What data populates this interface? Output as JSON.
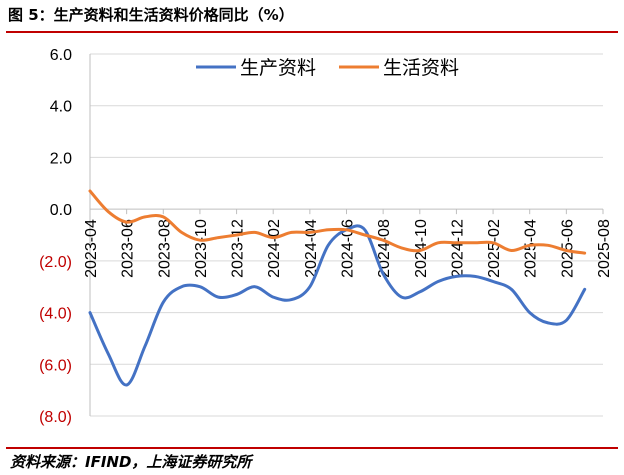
{
  "title": "图 5：生产资料和生活资料价格同比（%）",
  "source": "资料来源：IFIND，上海证券研究所",
  "colors": {
    "rule": "#c00000",
    "production": "#4472c4",
    "living": "#ed7d31",
    "grid": "#d9d9d9",
    "axis": "#bfbfbf"
  },
  "chart_data": {
    "type": "line",
    "ylim": [
      -8,
      6
    ],
    "yticks": [
      {
        "value": 6,
        "label": "6.0"
      },
      {
        "value": 4,
        "label": "4.0"
      },
      {
        "value": 2,
        "label": "2.0"
      },
      {
        "value": 0,
        "label": "0.0"
      },
      {
        "value": -2,
        "label": "(2.0)"
      },
      {
        "value": -4,
        "label": "(4.0)"
      },
      {
        "value": -6,
        "label": "(6.0)"
      },
      {
        "value": -8,
        "label": "(8.0)"
      }
    ],
    "x": [
      "2023-04",
      "2023-05",
      "2023-06",
      "2023-07",
      "2023-08",
      "2023-09",
      "2023-10",
      "2023-11",
      "2023-12",
      "2024-01",
      "2024-02",
      "2024-03",
      "2024-04",
      "2024-05",
      "2024-06",
      "2024-07",
      "2024-08",
      "2024-09",
      "2024-10",
      "2024-11",
      "2024-12",
      "2025-01",
      "2025-02",
      "2025-03",
      "2025-04",
      "2025-05",
      "2025-06",
      "2025-07",
      "2025-08"
    ],
    "xtick_labels": [
      "2023-04",
      "2023-06",
      "2023-08",
      "2023-10",
      "2023-12",
      "2024-02",
      "2024-04",
      "2024-06",
      "2024-08",
      "2024-10",
      "2024-12",
      "2025-02",
      "2025-04",
      "2025-06",
      "2025-08"
    ],
    "legend_position": "top-center",
    "series": [
      {
        "name": "生产资料",
        "color": "#4472c4",
        "values": [
          -4.0,
          -5.6,
          -6.8,
          -5.3,
          -3.6,
          -3.0,
          -3.0,
          -3.4,
          -3.3,
          -3.0,
          -3.4,
          -3.5,
          -3.0,
          -1.4,
          -0.8,
          -0.8,
          -2.5,
          -3.4,
          -3.2,
          -2.8,
          -2.6,
          -2.6,
          -2.8,
          -3.1,
          -4.0,
          -4.4,
          -4.3,
          -3.1,
          null
        ]
      },
      {
        "name": "生活资料",
        "color": "#ed7d31",
        "values": [
          0.7,
          -0.1,
          -0.5,
          -0.3,
          -0.3,
          -0.9,
          -1.2,
          -1.1,
          -1.0,
          -0.9,
          -1.1,
          -0.9,
          -0.9,
          -0.8,
          -0.8,
          -1.0,
          -1.2,
          -1.5,
          -1.6,
          -1.3,
          -1.3,
          -1.3,
          -1.3,
          -1.6,
          -1.4,
          -1.4,
          -1.6,
          -1.7,
          null
        ]
      }
    ]
  }
}
